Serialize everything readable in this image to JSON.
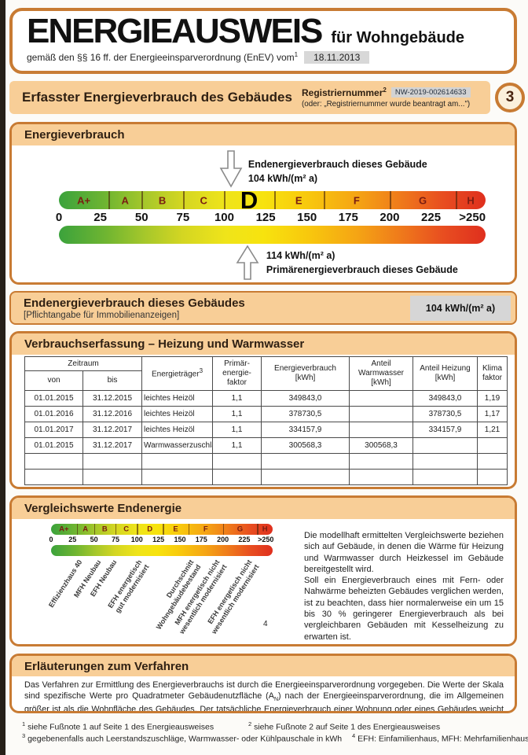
{
  "page": {
    "accent_border": "#C87B33",
    "band_fill": "#F8CE97",
    "page_badge": "3"
  },
  "header": {
    "title": "ENERGIEAUSWEIS",
    "suffix": "für Wohngebäude",
    "subtitle": "gemäß den §§ 16 ff. der Energieeinsparverordnung (EnEV) vom",
    "subtitle_sup": "1",
    "date": "18.11.2013"
  },
  "section_band": {
    "title": "Erfasster Energieverbrauch des Gebäudes",
    "reg_label": "Registriernummer",
    "reg_sup": "2",
    "reg_value": "NW-2019-002614633",
    "reg_alt": "(oder: „Registriernummer wurde beantragt am...\")"
  },
  "energy_scale": {
    "section_title": "Energieverbrauch",
    "unit": "kWh/(m² a)",
    "classes": [
      {
        "label": "A+",
        "from": 0,
        "to": 30
      },
      {
        "label": "A",
        "from": 30,
        "to": 50
      },
      {
        "label": "B",
        "from": 50,
        "to": 75
      },
      {
        "label": "C",
        "from": 75,
        "to": 100
      },
      {
        "label": "D",
        "from": 100,
        "to": 130
      },
      {
        "label": "E",
        "from": 130,
        "to": 160
      },
      {
        "label": "F",
        "from": 160,
        "to": 200
      },
      {
        "label": "G",
        "from": 200,
        "to": 240
      },
      {
        "label": "H",
        "from": 240,
        "to": 258
      }
    ],
    "ticks": [
      {
        "label": "0",
        "v": 0
      },
      {
        "label": "25",
        "v": 25
      },
      {
        "label": "50",
        "v": 50
      },
      {
        "label": "75",
        "v": 75
      },
      {
        "label": "100",
        "v": 100
      },
      {
        "label": "125",
        "v": 125
      },
      {
        "label": "150",
        "v": 150
      },
      {
        "label": "175",
        "v": 175
      },
      {
        "label": "200",
        "v": 200
      },
      {
        "label": "225",
        "v": 225
      },
      {
        "label": ">250",
        "v": 250
      }
    ],
    "current_class": "D",
    "end_energy": {
      "label": "Endenergieverbrauch dieses Gebäude",
      "value_text": "104 kWh/(m² a)",
      "value": 104
    },
    "primary_energy": {
      "label": "Primärenergieverbrauch dieses Gebäude",
      "value_text": "114 kWh/(m² a)",
      "value": 114
    }
  },
  "end_band": {
    "title": "Endenergieverbrauch dieses Gebäudes",
    "sub": "[Pflichtangabe für Immobilienanzeigen]",
    "value": "104 kWh/(m² a)"
  },
  "table": {
    "title": "Verbrauchserfassung – Heizung und Warmwasser",
    "headers": {
      "zeitraum": "Zeitraum",
      "von": "von",
      "bis": "bis",
      "energietraeger": "Energieträger",
      "energietraeger_sup": "3",
      "primaerfaktor": "Primär-\nenergie-\nfaktor",
      "verbrauch": "Energieverbrauch\n[kWh]",
      "anteil_ww": "Anteil\nWarmwasser\n[kWh]",
      "anteil_heizung": "Anteil Heizung\n[kWh]",
      "klimafaktor": "Klima\nfaktor"
    },
    "rows": [
      [
        "01.01.2015",
        "31.12.2015",
        "leichtes Heizöl",
        "1,1",
        "349843,0",
        "",
        "349843,0",
        "1,19"
      ],
      [
        "01.01.2016",
        "31.12.2016",
        "leichtes Heizöl",
        "1,1",
        "378730,5",
        "",
        "378730,5",
        "1,17"
      ],
      [
        "01.01.2017",
        "31.12.2017",
        "leichtes Heizöl",
        "1,1",
        "334157,9",
        "",
        "334157,9",
        "1,21"
      ],
      [
        "01.01.2015",
        "31.12.2017",
        "Warmwasserzuschlag",
        "1,1",
        "300568,3",
        "300568,3",
        "",
        ""
      ],
      [
        "",
        "",
        "",
        "",
        "",
        "",
        "",
        ""
      ],
      [
        "",
        "",
        "",
        "",
        "",
        "",
        "",
        ""
      ]
    ]
  },
  "compare": {
    "title": "Vergleichswerte Endenergie",
    "benchmarks": [
      {
        "lines": [
          "Effizienzhaus 40"
        ],
        "v": 30
      },
      {
        "lines": [
          "MFH Neubau"
        ],
        "v": 52
      },
      {
        "lines": [
          "EFH Neubau"
        ],
        "v": 70
      },
      {
        "lines": [
          "EFH energetisch",
          "gut modernisiert"
        ],
        "v": 100
      },
      {
        "lines": [
          "Durchschnitt",
          "Wohngebäudebestand"
        ],
        "v": 160
      },
      {
        "lines": [
          "MFH energetisch nicht",
          "wesentlich modernisiert"
        ],
        "v": 190
      },
      {
        "lines": [
          "EFH energetisch nicht",
          "wesentlich modernisiert"
        ],
        "v": 228
      }
    ],
    "footnote_sup": "4",
    "p1": "Die modellhaft ermittelten Vergleichswerte beziehen sich auf Gebäude, in denen die Wärme für Heizung und Warmwasser durch Heizkessel im Gebäude bereitgestellt wird.",
    "p2": "Soll ein Energieverbrauch eines mit Fern- oder Nahwärme beheizten Gebäudes verglichen werden, ist zu beachten, dass hier normalerweise ein um 15 bis 30 % geringerer Energieverbrauch als bei vergleichbaren Gebäuden mit Kesselheizung zu erwarten ist."
  },
  "explain": {
    "title": "Erläuterungen zum Verfahren",
    "p1": "Das Verfahren zur Ermittlung des Energieverbrauchs ist durch die Energieeinsparverordnung vorgegeben. Die Werte der Skala sind spezifische Werte pro Quadratmeter Gebäudenutzfläche (A",
    "p1_sub": "N",
    "p2": ") nach der Energieeinsparverordnung, die im Allgemeinen größer ist als die Wohnfläche des Gebäudes. Der tatsächliche Energieverbrauch einer Wohnung oder eines Gebäudes weicht insbesondere wegen des Witterungseinflusses und sich ändernden Nutzerverhaltens vom angegebenen Energieverbrauch ab."
  },
  "footnotes": {
    "fn1": {
      "sup": "1",
      "text": "siehe Fußnote 1 auf Seite 1 des Energieausweises"
    },
    "fn2": {
      "sup": "2",
      "text": "siehe Fußnote 2 auf Seite 1 des Energieausweises"
    },
    "fn3": {
      "sup": "3",
      "text": "gegebenenfalls auch Leerstandszuschläge, Warmwasser- oder Kühlpauschale in kWh"
    },
    "fn4": {
      "sup": "4",
      "text": "EFH: Einfamilienhaus, MFH: Mehrfamilienhaus"
    }
  }
}
